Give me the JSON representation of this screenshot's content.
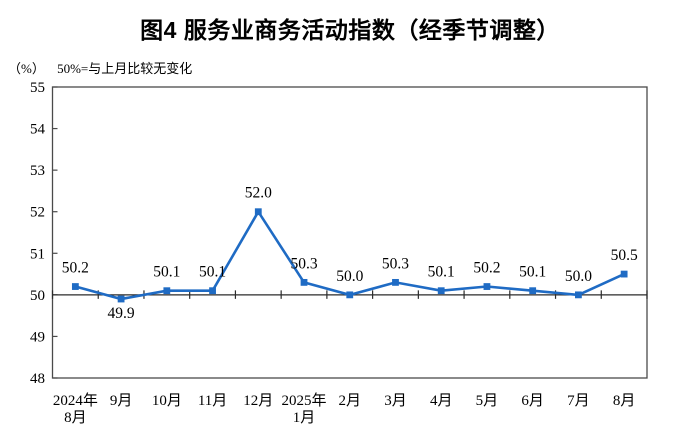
{
  "chart_data": {
    "type": "line",
    "title": "图4 服务业商务活动指数（经季节调整）",
    "unit_label": "（%）",
    "subtitle": "50%=与上月比较无变化",
    "categories": [
      [
        "2024年",
        "8月"
      ],
      [
        "9月"
      ],
      [
        "10月"
      ],
      [
        "11月"
      ],
      [
        "12月"
      ],
      [
        "2025年",
        "1月"
      ],
      [
        "2月"
      ],
      [
        "3月"
      ],
      [
        "4月"
      ],
      [
        "5月"
      ],
      [
        "6月"
      ],
      [
        "7月"
      ],
      [
        "8月"
      ]
    ],
    "values": [
      50.2,
      49.9,
      50.1,
      50.1,
      52.0,
      50.3,
      50.0,
      50.3,
      50.1,
      50.2,
      50.1,
      50.0,
      50.5
    ],
    "data_labels": [
      "50.2",
      "49.9",
      "50.1",
      "50.1",
      "52.0",
      "50.3",
      "50.0",
      "50.3",
      "50.1",
      "50.2",
      "50.1",
      "50.0",
      "50.5"
    ],
    "label_below_indices": [
      1
    ],
    "ylim": [
      48,
      55
    ],
    "yticks": [
      48,
      49,
      50,
      51,
      52,
      53,
      54,
      55
    ],
    "axis_cross_value": 50,
    "grid": false,
    "legend": "none",
    "marker": "square",
    "line_color": "#1f6bc4",
    "axis_color": "#4a4a4a",
    "baseline_color": "#2b2b2b",
    "text_color": "#000000"
  }
}
